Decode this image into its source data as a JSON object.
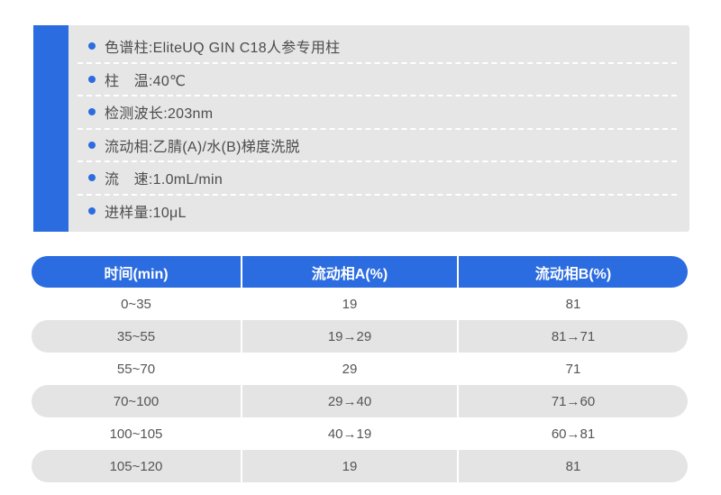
{
  "conditions": {
    "items": [
      "色谱柱:EliteUQ GIN C18人参专用柱",
      "柱　温:40℃",
      "检测波长:203nm",
      "流动相:乙腈(A)/水(B)梯度洗脱",
      "流　速:1.0mL/min",
      "进样量:10μL"
    ]
  },
  "table": {
    "headers": [
      "时间(min)",
      "流动相A(%)",
      "流动相B(%)"
    ],
    "rows": [
      {
        "cells": [
          "0~35",
          "19",
          "81"
        ]
      },
      {
        "cells": [
          "35~55",
          "19→29",
          "81→71"
        ]
      },
      {
        "cells": [
          "55~70",
          "29",
          "71"
        ]
      },
      {
        "cells": [
          "70~100",
          "29→40",
          "71→60"
        ]
      },
      {
        "cells": [
          "100~105",
          "40→19",
          "60→81"
        ]
      },
      {
        "cells": [
          "105~120",
          "19",
          "81"
        ]
      }
    ]
  },
  "colors": {
    "accent_blue": "#2b6ce0",
    "panel_gray": "#e6e6e6",
    "stripe_gray": "#e4e4e4",
    "text_gray": "#4d4d4d"
  }
}
